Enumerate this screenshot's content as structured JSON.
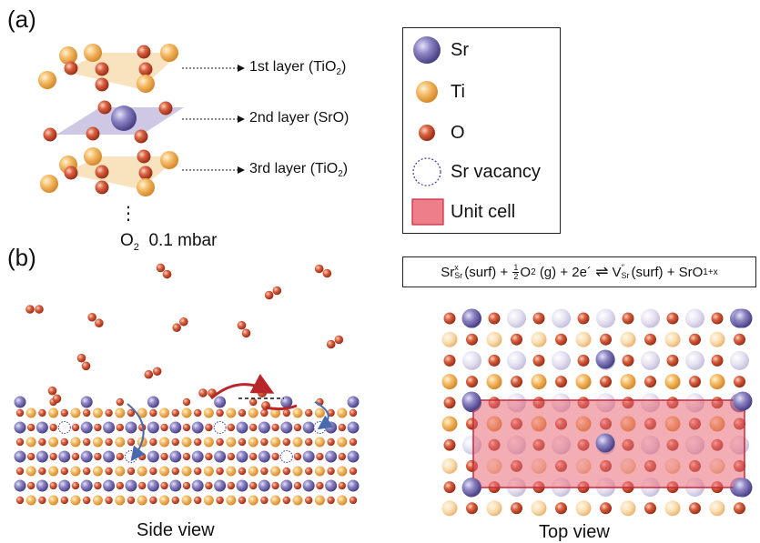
{
  "panel_a": {
    "label": "(a)",
    "layers": [
      {
        "text": "1st layer (TiO",
        "sub": "2",
        "tail": ")"
      },
      {
        "text": "2nd layer (SrO)",
        "sub": "",
        "tail": ""
      },
      {
        "text": "3rd layer (TiO",
        "sub": "2",
        "tail": ")"
      }
    ],
    "ellipsis": "⋮",
    "pressure": {
      "gas": "O",
      "sub": "2",
      "value": "0.1 mbar"
    }
  },
  "panel_b": {
    "label": "(b)",
    "side_caption": "Side view",
    "top_caption": "Top view"
  },
  "legend": [
    {
      "icon": "sr-atom-icon",
      "label": "Sr"
    },
    {
      "icon": "ti-atom-icon",
      "label": "Ti"
    },
    {
      "icon": "o-atom-icon",
      "label": "O"
    },
    {
      "icon": "sr-vacancy-icon",
      "label": "Sr vacancy"
    },
    {
      "icon": "unit-cell-icon",
      "label": "Unit cell"
    }
  ],
  "equation": {
    "t1": "Sr",
    "t1_sup": "x",
    "t1_sub": "Sr",
    "t2": "(surf) +",
    "frac_num": "1",
    "frac_den": "2",
    "t3": "O",
    "t3_sub": "2",
    "t4": "(g) + 2e´",
    "arrow": "⇌",
    "t5": "V",
    "t5_sup": "′′",
    "t5_sub": "Sr",
    "t6": "(surf) + SrO",
    "t6_sub": "1+x"
  },
  "colors": {
    "sr": "#8078b8",
    "ti": "#f2b55f",
    "o": "#d0583c",
    "vacancy": "#3a3aa0",
    "unit_cell": "#e86a78",
    "arrow_red": "#b8262a",
    "arrow_blue": "#4a6ab0"
  }
}
